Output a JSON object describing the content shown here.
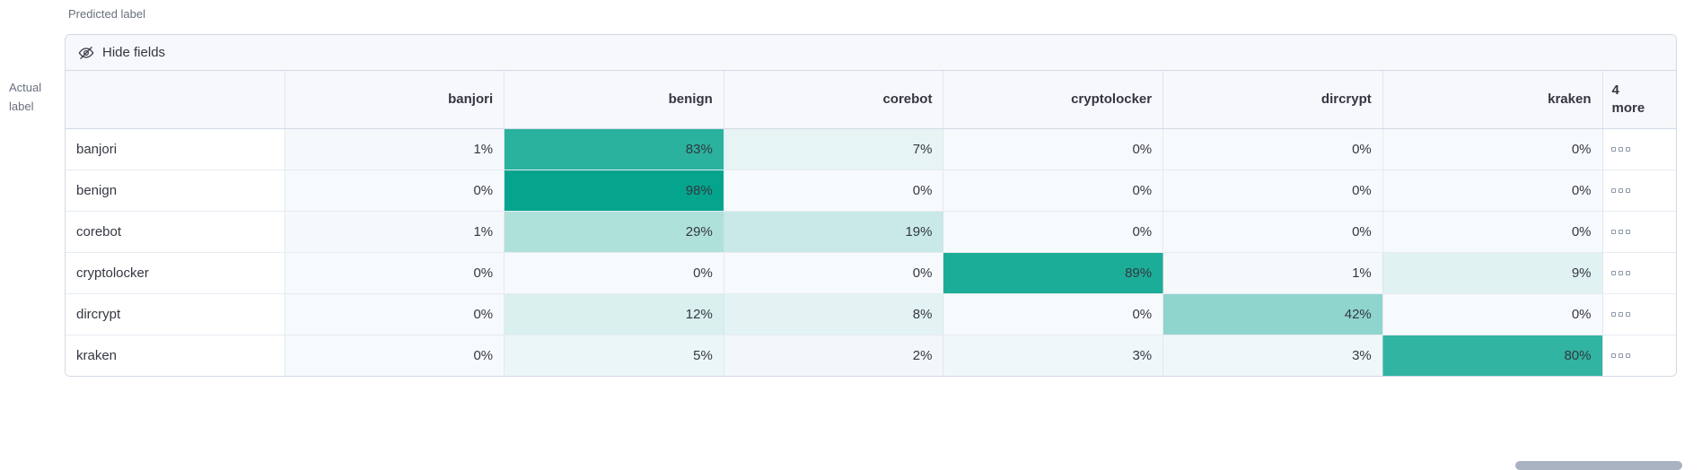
{
  "axis": {
    "predicted": "Predicted label",
    "actual_line1": "Actual",
    "actual_line2": "label"
  },
  "toolbar": {
    "hide_fields_label": "Hide fields"
  },
  "more_header": {
    "count": "4",
    "word": "more"
  },
  "chart_data": {
    "type": "heatmap",
    "x_axis_label": "Predicted label",
    "y_axis_label": "Actual label",
    "columns": [
      "banjori",
      "benign",
      "corebot",
      "cryptolocker",
      "dircrypt",
      "kraken"
    ],
    "rows": [
      "banjori",
      "benign",
      "corebot",
      "cryptolocker",
      "dircrypt",
      "kraken"
    ],
    "values_percent": [
      [
        1,
        83,
        7,
        0,
        0,
        0
      ],
      [
        0,
        98,
        0,
        0,
        0,
        0
      ],
      [
        1,
        29,
        19,
        0,
        0,
        0
      ],
      [
        0,
        0,
        0,
        89,
        1,
        9
      ],
      [
        0,
        12,
        8,
        0,
        42,
        0
      ],
      [
        0,
        5,
        2,
        3,
        3,
        80
      ]
    ],
    "value_suffix": "%",
    "hidden_columns_count": 4,
    "colors": {
      "low": "#F7FAFC",
      "high": "#00A38B"
    }
  }
}
